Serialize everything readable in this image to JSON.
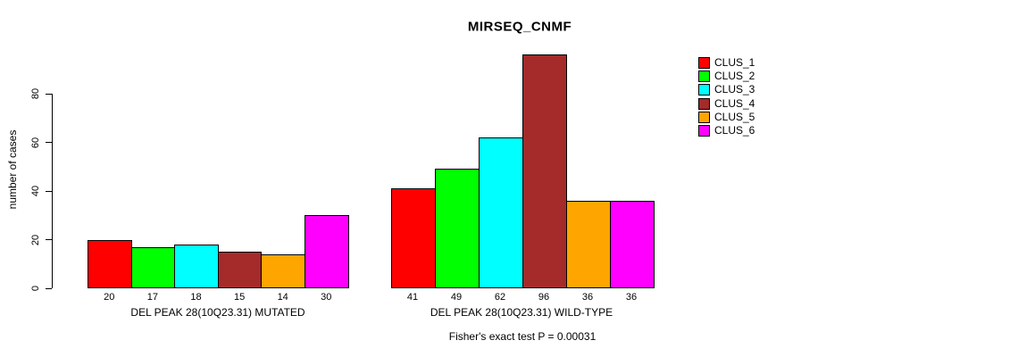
{
  "chart_data": {
    "type": "bar",
    "title": "MIRSEQ_CNMF",
    "ylabel": "number of cases",
    "xlabel": "",
    "yticks": [
      0,
      20,
      40,
      60,
      80
    ],
    "ylim": [
      0,
      96
    ],
    "grid": false,
    "legend_position": "right",
    "series_names": [
      "CLUS_1",
      "CLUS_2",
      "CLUS_3",
      "CLUS_4",
      "CLUS_5",
      "CLUS_6"
    ],
    "colors": [
      "#FF0000",
      "#00FF00",
      "#00FFFF",
      "#A52A2A",
      "#FFA500",
      "#FF00FF"
    ],
    "groups": [
      {
        "label": "DEL PEAK 28(10Q23.31) MUTATED",
        "values": [
          20,
          17,
          18,
          15,
          14,
          30
        ]
      },
      {
        "label": "DEL PEAK 28(10Q23.31) WILD-TYPE",
        "values": [
          41,
          49,
          62,
          96,
          36,
          36
        ]
      }
    ],
    "annotation": "Fisher's exact test P = 0.00031"
  }
}
